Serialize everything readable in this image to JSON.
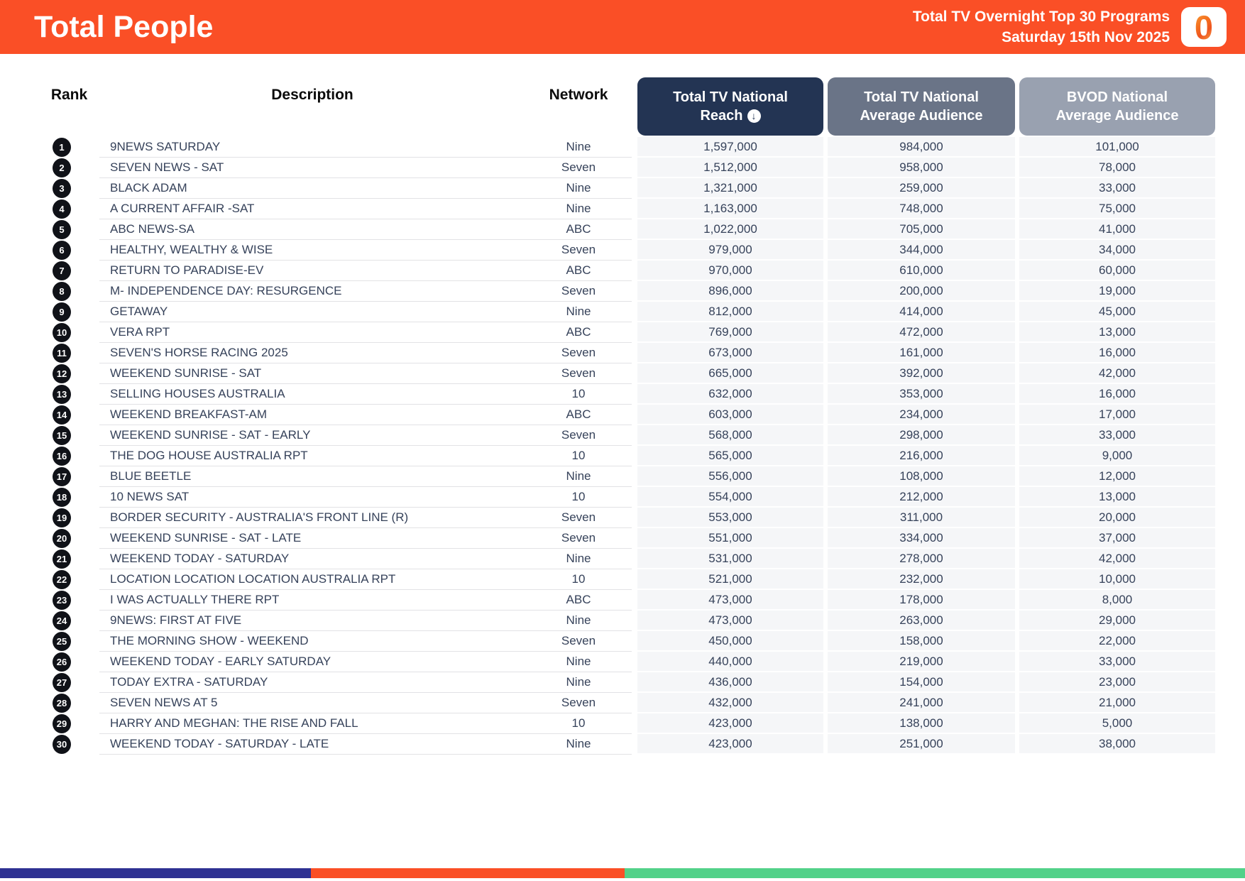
{
  "header": {
    "title": "Total People",
    "subtitle_line1": "Total TV Overnight Top 30 Programs",
    "subtitle_line2": "Saturday 15th Nov 2025",
    "logo_glyph": "0",
    "background_color": "#FA4F26"
  },
  "table": {
    "labels": {
      "rank": "Rank",
      "description": "Description",
      "network": "Network"
    },
    "sort_icon": "↓",
    "value_headers": [
      {
        "line1": "Total TV National",
        "line2": "Reach",
        "color": "#233453",
        "sorted_descending": true
      },
      {
        "line1": "Total TV National",
        "line2": "Average Audience",
        "color": "#6A7487"
      },
      {
        "line1": "BVOD National",
        "line2": "Average Audience",
        "color": "#99A1B0"
      }
    ],
    "rows": [
      {
        "rank": "1",
        "description": "9NEWS SATURDAY",
        "network": "Nine",
        "reach": "1,597,000",
        "avg_audience": "984,000",
        "bvod_audience": "101,000"
      },
      {
        "rank": "2",
        "description": "SEVEN NEWS - SAT",
        "network": "Seven",
        "reach": "1,512,000",
        "avg_audience": "958,000",
        "bvod_audience": "78,000"
      },
      {
        "rank": "3",
        "description": "BLACK ADAM",
        "network": "Nine",
        "reach": "1,321,000",
        "avg_audience": "259,000",
        "bvod_audience": "33,000"
      },
      {
        "rank": "4",
        "description": "A CURRENT AFFAIR -SAT",
        "network": "Nine",
        "reach": "1,163,000",
        "avg_audience": "748,000",
        "bvod_audience": "75,000"
      },
      {
        "rank": "5",
        "description": "ABC NEWS-SA",
        "network": "ABC",
        "reach": "1,022,000",
        "avg_audience": "705,000",
        "bvod_audience": "41,000"
      },
      {
        "rank": "6",
        "description": "HEALTHY, WEALTHY & WISE",
        "network": "Seven",
        "reach": "979,000",
        "avg_audience": "344,000",
        "bvod_audience": "34,000"
      },
      {
        "rank": "7",
        "description": "RETURN TO PARADISE-EV",
        "network": "ABC",
        "reach": "970,000",
        "avg_audience": "610,000",
        "bvod_audience": "60,000"
      },
      {
        "rank": "8",
        "description": "M- INDEPENDENCE DAY: RESURGENCE",
        "network": "Seven",
        "reach": "896,000",
        "avg_audience": "200,000",
        "bvod_audience": "19,000"
      },
      {
        "rank": "9",
        "description": "GETAWAY",
        "network": "Nine",
        "reach": "812,000",
        "avg_audience": "414,000",
        "bvod_audience": "45,000"
      },
      {
        "rank": "10",
        "description": "VERA RPT",
        "network": "ABC",
        "reach": "769,000",
        "avg_audience": "472,000",
        "bvod_audience": "13,000"
      },
      {
        "rank": "11",
        "description": "SEVEN'S HORSE RACING 2025",
        "network": "Seven",
        "reach": "673,000",
        "avg_audience": "161,000",
        "bvod_audience": "16,000"
      },
      {
        "rank": "12",
        "description": "WEEKEND SUNRISE - SAT",
        "network": "Seven",
        "reach": "665,000",
        "avg_audience": "392,000",
        "bvod_audience": "42,000"
      },
      {
        "rank": "13",
        "description": "SELLING HOUSES AUSTRALIA",
        "network": "10",
        "reach": "632,000",
        "avg_audience": "353,000",
        "bvod_audience": "16,000"
      },
      {
        "rank": "14",
        "description": "WEEKEND BREAKFAST-AM",
        "network": "ABC",
        "reach": "603,000",
        "avg_audience": "234,000",
        "bvod_audience": "17,000"
      },
      {
        "rank": "15",
        "description": "WEEKEND SUNRISE - SAT - EARLY",
        "network": "Seven",
        "reach": "568,000",
        "avg_audience": "298,000",
        "bvod_audience": "33,000"
      },
      {
        "rank": "16",
        "description": "THE DOG HOUSE AUSTRALIA RPT",
        "network": "10",
        "reach": "565,000",
        "avg_audience": "216,000",
        "bvod_audience": "9,000"
      },
      {
        "rank": "17",
        "description": "BLUE BEETLE",
        "network": "Nine",
        "reach": "556,000",
        "avg_audience": "108,000",
        "bvod_audience": "12,000"
      },
      {
        "rank": "18",
        "description": "10 NEWS SAT",
        "network": "10",
        "reach": "554,000",
        "avg_audience": "212,000",
        "bvod_audience": "13,000"
      },
      {
        "rank": "19",
        "description": "BORDER SECURITY - AUSTRALIA'S FRONT LINE (R)",
        "network": "Seven",
        "reach": "553,000",
        "avg_audience": "311,000",
        "bvod_audience": "20,000"
      },
      {
        "rank": "20",
        "description": "WEEKEND SUNRISE - SAT - LATE",
        "network": "Seven",
        "reach": "551,000",
        "avg_audience": "334,000",
        "bvod_audience": "37,000"
      },
      {
        "rank": "21",
        "description": "WEEKEND TODAY - SATURDAY",
        "network": "Nine",
        "reach": "531,000",
        "avg_audience": "278,000",
        "bvod_audience": "42,000"
      },
      {
        "rank": "22",
        "description": "LOCATION LOCATION LOCATION AUSTRALIA RPT",
        "network": "10",
        "reach": "521,000",
        "avg_audience": "232,000",
        "bvod_audience": "10,000"
      },
      {
        "rank": "23",
        "description": "I WAS ACTUALLY THERE RPT",
        "network": "ABC",
        "reach": "473,000",
        "avg_audience": "178,000",
        "bvod_audience": "8,000"
      },
      {
        "rank": "24",
        "description": "9NEWS: FIRST AT FIVE",
        "network": "Nine",
        "reach": "473,000",
        "avg_audience": "263,000",
        "bvod_audience": "29,000"
      },
      {
        "rank": "25",
        "description": "THE MORNING SHOW - WEEKEND",
        "network": "Seven",
        "reach": "450,000",
        "avg_audience": "158,000",
        "bvod_audience": "22,000"
      },
      {
        "rank": "26",
        "description": "WEEKEND TODAY - EARLY SATURDAY",
        "network": "Nine",
        "reach": "440,000",
        "avg_audience": "219,000",
        "bvod_audience": "33,000"
      },
      {
        "rank": "27",
        "description": "TODAY EXTRA - SATURDAY",
        "network": "Nine",
        "reach": "436,000",
        "avg_audience": "154,000",
        "bvod_audience": "23,000"
      },
      {
        "rank": "28",
        "description": "SEVEN NEWS AT 5",
        "network": "Seven",
        "reach": "432,000",
        "avg_audience": "241,000",
        "bvod_audience": "21,000"
      },
      {
        "rank": "29",
        "description": "HARRY AND MEGHAN: THE RISE AND FALL",
        "network": "10",
        "reach": "423,000",
        "avg_audience": "138,000",
        "bvod_audience": "5,000"
      },
      {
        "rank": "30",
        "description": "WEEKEND TODAY - SATURDAY - LATE",
        "network": "Nine",
        "reach": "423,000",
        "avg_audience": "251,000",
        "bvod_audience": "38,000"
      }
    ]
  },
  "footer": {
    "bar_colors": [
      "#2E3192",
      "#FA4F26",
      "#52D189"
    ]
  }
}
